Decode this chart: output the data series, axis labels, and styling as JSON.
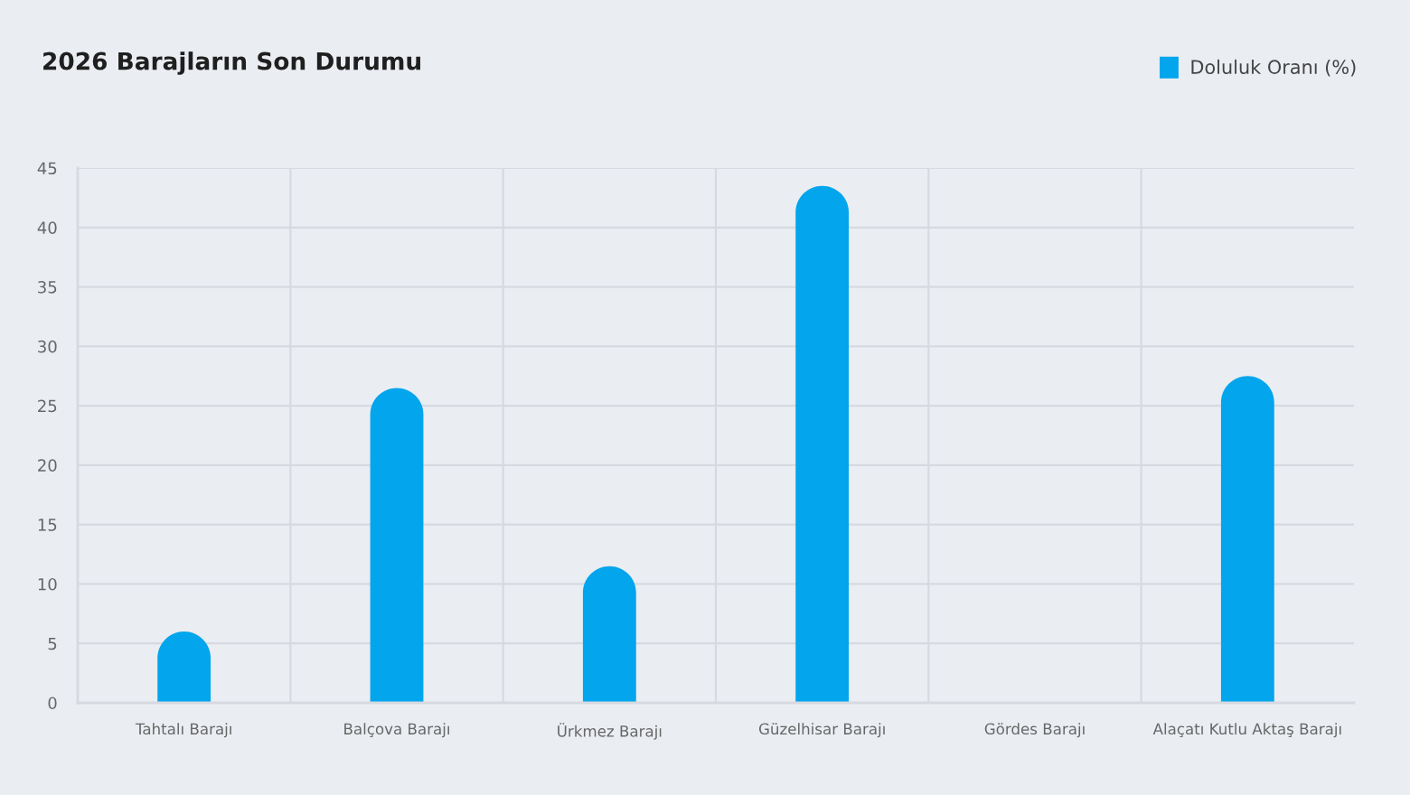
{
  "chart_data": {
    "type": "bar",
    "title": "2026 Barajların Son Durumu",
    "categories": [
      "Tahtalı Barajı",
      "Balçova Barajı",
      "Ürkmez Barajı",
      "Güzelhisar Barajı",
      "Gördes Barajı",
      "Alaçatı Kutlu Aktaş Barajı"
    ],
    "series": [
      {
        "name": "Doluluk Oranı (%)",
        "color": "#03a5ec",
        "values": [
          6,
          26.5,
          11.5,
          43.5,
          0,
          27.5
        ]
      }
    ],
    "ylim": [
      0,
      45
    ],
    "yticks": [
      0,
      5,
      10,
      15,
      20,
      25,
      30,
      35,
      40,
      45
    ],
    "grid": true,
    "legend": "top right"
  }
}
